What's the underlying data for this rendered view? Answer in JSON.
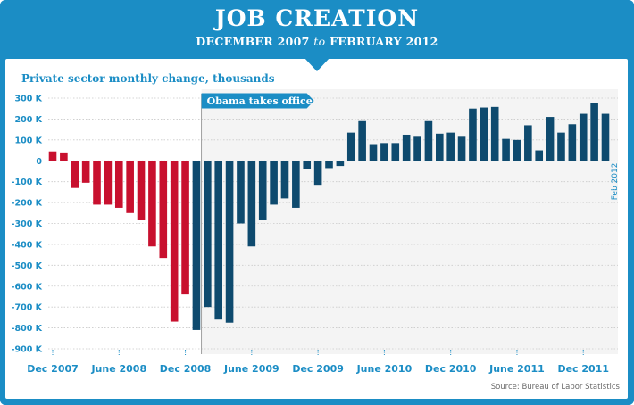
{
  "header": {
    "title": "JOB CREATION",
    "subtitle_start": "DECEMBER 2007",
    "subtitle_connector": "to",
    "subtitle_end": "FEBRUARY 2012"
  },
  "source": "Source: Bureau of Labor Statistics",
  "colors": {
    "frame": "#1b8dc5",
    "before": "#c8102e",
    "after": "#0e4a6e",
    "shade": "#f4f4f4"
  },
  "chart_data": {
    "type": "bar",
    "ylabel": "Private sector monthly change, thousands",
    "ylim": [
      -900,
      300
    ],
    "yticks": [
      300,
      200,
      100,
      0,
      -100,
      -200,
      -300,
      -400,
      -500,
      -600,
      -700,
      -800,
      -900
    ],
    "ytick_labels": [
      "300 K",
      "200 K",
      "100 K",
      "0",
      "-100 K",
      "-200 K",
      "-300 K",
      "-400 K",
      "-500 K",
      "-600 K",
      "-700 K",
      "-800 K",
      "-900 K"
    ],
    "xtick_labels": [
      {
        "label": "Dec 2007",
        "index": 0
      },
      {
        "label": "June 2008",
        "index": 6
      },
      {
        "label": "Dec 2008",
        "index": 12
      },
      {
        "label": "June 2009",
        "index": 18
      },
      {
        "label": "Dec 2009",
        "index": 24
      },
      {
        "label": "June 2010",
        "index": 30
      },
      {
        "label": "Dec 2010",
        "index": 36
      },
      {
        "label": "June 2011",
        "index": 42
      },
      {
        "label": "Dec 2011",
        "index": 48
      }
    ],
    "last_label": "Feb 2012",
    "annotation": {
      "text": "Obama takes office",
      "start_index": 13
    },
    "values": [
      45,
      40,
      -130,
      -105,
      -210,
      -210,
      -225,
      -250,
      -285,
      -410,
      -465,
      -770,
      -640,
      -810,
      -700,
      -760,
      -775,
      -300,
      -410,
      -285,
      -210,
      -180,
      -225,
      -40,
      -115,
      -35,
      -25,
      135,
      190,
      80,
      85,
      85,
      125,
      115,
      190,
      130,
      135,
      115,
      250,
      255,
      258,
      105,
      100,
      170,
      50,
      210,
      135,
      175,
      225,
      275,
      225
    ]
  }
}
